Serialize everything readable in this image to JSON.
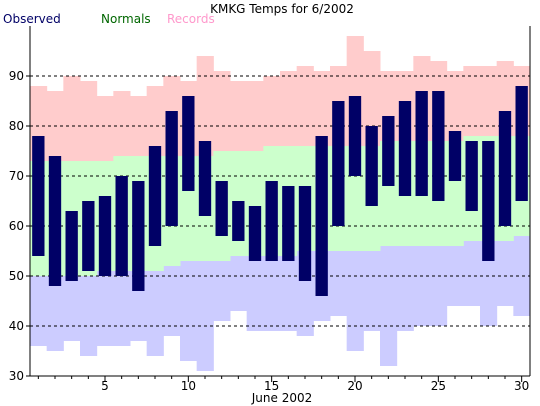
{
  "chart_data": {
    "type": "bar",
    "title": "KMKG Temps for 6/2002",
    "xlabel": "June 2002",
    "ylabel": "",
    "xlim": [
      0.5,
      30.5
    ],
    "ylim": [
      30,
      100
    ],
    "grid": "horizontal dashed at 40, 50, 60, 70, 80, 90",
    "legend": "top-left",
    "x_ticks": [
      5,
      10,
      15,
      20,
      25,
      30
    ],
    "y_ticks": [
      30,
      40,
      50,
      60,
      70,
      80,
      90
    ],
    "colors": {
      "observed": "#000066",
      "normals_band": "#ccffcc",
      "records_high": "#ffcccc",
      "records_low": "#ccccff",
      "observed_label": "#000066",
      "normals_label": "#006600",
      "records_label": "#ff99cc"
    },
    "days": [
      1,
      2,
      3,
      4,
      5,
      6,
      7,
      8,
      9,
      10,
      11,
      12,
      13,
      14,
      15,
      16,
      17,
      18,
      19,
      20,
      21,
      22,
      23,
      24,
      25,
      26,
      27,
      28,
      29,
      30
    ],
    "series": [
      {
        "name": "Observed",
        "key": "observed",
        "high": [
          78,
          74,
          63,
          65,
          66,
          70,
          69,
          76,
          83,
          86,
          77,
          69,
          65,
          64,
          69,
          68,
          68,
          78,
          85,
          86,
          80,
          82,
          85,
          87,
          87,
          79,
          77,
          77,
          83,
          88
        ],
        "low": [
          54,
          48,
          49,
          51,
          50,
          50,
          47,
          56,
          60,
          67,
          62,
          58,
          57,
          53,
          53,
          53,
          49,
          46,
          60,
          70,
          64,
          68,
          66,
          66,
          65,
          69,
          63,
          53,
          60,
          65
        ]
      },
      {
        "name": "Normals",
        "key": "normals",
        "high": [
          73,
          73,
          73,
          73,
          73,
          74,
          74,
          74,
          74,
          74,
          74,
          75,
          75,
          75,
          76,
          76,
          76,
          76,
          76,
          76,
          76,
          77,
          77,
          77,
          77,
          77,
          78,
          78,
          78,
          78
        ],
        "low": [
          50,
          50,
          50,
          50,
          51,
          51,
          51,
          51,
          52,
          53,
          53,
          53,
          54,
          54,
          54,
          54,
          55,
          55,
          55,
          55,
          55,
          56,
          56,
          56,
          56,
          56,
          57,
          57,
          57,
          58
        ]
      },
      {
        "name": "Records",
        "key": "records",
        "high": [
          88,
          87,
          90,
          89,
          86,
          87,
          86,
          88,
          90,
          89,
          94,
          91,
          89,
          89,
          90,
          91,
          92,
          91,
          92,
          98,
          95,
          91,
          91,
          94,
          93,
          91,
          92,
          92,
          93,
          92
        ],
        "low": [
          36,
          35,
          37,
          34,
          36,
          36,
          37,
          34,
          38,
          33,
          31,
          41,
          43,
          39,
          39,
          39,
          38,
          41,
          42,
          35,
          39,
          32,
          39,
          40,
          40,
          44,
          44,
          40,
          44,
          42
        ]
      }
    ]
  }
}
